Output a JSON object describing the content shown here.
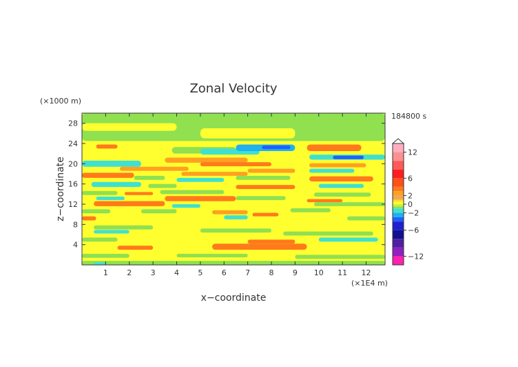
{
  "chart_data": {
    "type": "heatmap",
    "title": "Zonal Velocity",
    "xlabel": "x−coordinate",
    "ylabel": "z−coordinate",
    "x_unit": "(×1E4 m)",
    "y_unit": "(×1000 m)",
    "time_label": "184800 s",
    "xlim": [
      0,
      12.8
    ],
    "ylim": [
      0,
      30
    ],
    "x_ticks": [
      "1",
      "2",
      "3",
      "4",
      "5",
      "6",
      "7",
      "8",
      "9",
      "10",
      "11",
      "12"
    ],
    "y_ticks": [
      "4",
      "8",
      "12",
      "16",
      "20",
      "24",
      "28"
    ],
    "colorbar": {
      "labels": [
        "12",
        "6",
        "2",
        "0",
        "−2",
        "−6",
        "−12"
      ],
      "levels": [
        {
          "lo": 12,
          "hi": 14,
          "color": "#ffb0c0"
        },
        {
          "lo": 10,
          "hi": 12,
          "color": "#ff9090"
        },
        {
          "lo": 8,
          "hi": 10,
          "color": "#ff5a5a"
        },
        {
          "lo": 6,
          "hi": 8,
          "color": "#ff1e1e"
        },
        {
          "lo": 4,
          "hi": 6,
          "color": "#ff5018"
        },
        {
          "lo": 3,
          "hi": 4,
          "color": "#ff7a1a"
        },
        {
          "lo": 2,
          "hi": 3,
          "color": "#ffa020"
        },
        {
          "lo": 1,
          "hi": 2,
          "color": "#f0a850"
        },
        {
          "lo": 0.5,
          "hi": 1,
          "color": "#ffe020"
        },
        {
          "lo": 0,
          "hi": 0.5,
          "color": "#ffff30"
        },
        {
          "lo": -0.5,
          "hi": 0,
          "color": "#c8f040"
        },
        {
          "lo": -1,
          "hi": -0.5,
          "color": "#90e050"
        },
        {
          "lo": -2,
          "hi": -1,
          "color": "#40e0d0"
        },
        {
          "lo": -3,
          "hi": -2,
          "color": "#20b0f0"
        },
        {
          "lo": -4,
          "hi": -3,
          "color": "#1e60ff"
        },
        {
          "lo": -6,
          "hi": -4,
          "color": "#2020d0"
        },
        {
          "lo": -8,
          "hi": -6,
          "color": "#101090"
        },
        {
          "lo": -10,
          "hi": -8,
          "color": "#5020a0"
        },
        {
          "lo": -12,
          "hi": -10,
          "color": "#9020c0"
        },
        {
          "lo": -14,
          "hi": -12,
          "color": "#ff20b0"
        }
      ]
    },
    "bands": [
      {
        "x": [
          0,
          12.8
        ],
        "z": [
          24.5,
          30
        ],
        "v": -0.8
      },
      {
        "x": [
          0,
          4
        ],
        "z": [
          26.5,
          28
        ],
        "v": 0.3
      },
      {
        "x": [
          5,
          9
        ],
        "z": [
          25,
          27
        ],
        "v": 0.3
      },
      {
        "x": [
          0.5,
          3.5
        ],
        "z": [
          21.5,
          24
        ],
        "v": 0.3
      },
      {
        "x": [
          0.6,
          1.5
        ],
        "z": [
          23,
          23.8
        ],
        "v": 3
      },
      {
        "x": [
          3.8,
          6.5
        ],
        "z": [
          22,
          23.3
        ],
        "v": -0.8
      },
      {
        "x": [
          5,
          7.5
        ],
        "z": [
          21.8,
          23
        ],
        "v": -2
      },
      {
        "x": [
          6.5,
          9
        ],
        "z": [
          22.5,
          23.8
        ],
        "v": -2.5
      },
      {
        "x": [
          7.6,
          8.8
        ],
        "z": [
          22.9,
          23.6
        ],
        "v": -3.5
      },
      {
        "x": [
          9.5,
          11.8
        ],
        "z": [
          22.5,
          23.8
        ],
        "v": 3
      },
      {
        "x": [
          0,
          2.5
        ],
        "z": [
          19.4,
          20.6
        ],
        "v": -2
      },
      {
        "x": [
          3.5,
          7
        ],
        "z": [
          20.2,
          21.2
        ],
        "v": 2.5
      },
      {
        "x": [
          5,
          8
        ],
        "z": [
          19.5,
          20.3
        ],
        "v": 3
      },
      {
        "x": [
          9.6,
          12.8
        ],
        "z": [
          20.8,
          21.8
        ],
        "v": -2
      },
      {
        "x": [
          10.6,
          11.9
        ],
        "z": [
          20.9,
          21.6
        ],
        "v": -3.5
      },
      {
        "x": [
          1.6,
          4.5
        ],
        "z": [
          18.6,
          19.4
        ],
        "v": 2.5
      },
      {
        "x": [
          4.2,
          7
        ],
        "z": [
          17.6,
          18.4
        ],
        "v": 2.5
      },
      {
        "x": [
          7,
          9
        ],
        "z": [
          18.2,
          19
        ],
        "v": 2.5
      },
      {
        "x": [
          9.6,
          12
        ],
        "z": [
          19.3,
          20.1
        ],
        "v": 2.5
      },
      {
        "x": [
          9.6,
          11.5
        ],
        "z": [
          18.2,
          19
        ],
        "v": -2
      },
      {
        "x": [
          0,
          2.2
        ],
        "z": [
          17.2,
          18.2
        ],
        "v": 3
      },
      {
        "x": [
          2.2,
          3.5
        ],
        "z": [
          16.8,
          17.6
        ],
        "v": -0.8
      },
      {
        "x": [
          4,
          6
        ],
        "z": [
          16.4,
          17.2
        ],
        "v": -2
      },
      {
        "x": [
          6.5,
          8.8
        ],
        "z": [
          16.8,
          17.6
        ],
        "v": -0.8
      },
      {
        "x": [
          9.6,
          12.3
        ],
        "z": [
          16.5,
          17.5
        ],
        "v": 3
      },
      {
        "x": [
          0.4,
          2.5
        ],
        "z": [
          15.4,
          16.4
        ],
        "v": -2
      },
      {
        "x": [
          2.8,
          4
        ],
        "z": [
          15.2,
          16
        ],
        "v": -0.8
      },
      {
        "x": [
          6.5,
          9
        ],
        "z": [
          15,
          15.8
        ],
        "v": 3
      },
      {
        "x": [
          10,
          11.9
        ],
        "z": [
          15.2,
          16
        ],
        "v": -2
      },
      {
        "x": [
          0,
          1.5
        ],
        "z": [
          13.8,
          14.6
        ],
        "v": -0.8
      },
      {
        "x": [
          1.8,
          3
        ],
        "z": [
          13.8,
          14.4
        ],
        "v": 3
      },
      {
        "x": [
          3.3,
          6
        ],
        "z": [
          14,
          14.8
        ],
        "v": -0.8
      },
      {
        "x": [
          3.5,
          6.5
        ],
        "z": [
          12.6,
          13.6
        ],
        "v": 3
      },
      {
        "x": [
          9.8,
          12.2
        ],
        "z": [
          13.5,
          14.3
        ],
        "v": -0.8
      },
      {
        "x": [
          0.6,
          1.8
        ],
        "z": [
          12.8,
          13.5
        ],
        "v": -2
      },
      {
        "x": [
          6.5,
          8.6
        ],
        "z": [
          12.8,
          13.6
        ],
        "v": -0.8
      },
      {
        "x": [
          9.5,
          11
        ],
        "z": [
          12.4,
          13
        ],
        "v": 3
      },
      {
        "x": [
          0.5,
          3.5
        ],
        "z": [
          11.6,
          12.6
        ],
        "v": 3
      },
      {
        "x": [
          3.8,
          5
        ],
        "z": [
          11.3,
          12
        ],
        "v": -2
      },
      {
        "x": [
          9.8,
          12.8
        ],
        "z": [
          11.6,
          12.4
        ],
        "v": -0.8
      },
      {
        "x": [
          0,
          1.2
        ],
        "z": [
          10.2,
          11
        ],
        "v": -0.8
      },
      {
        "x": [
          2.5,
          4
        ],
        "z": [
          10.2,
          11
        ],
        "v": -0.8
      },
      {
        "x": [
          5.5,
          7
        ],
        "z": [
          10,
          10.8
        ],
        "v": 2.5
      },
      {
        "x": [
          8.8,
          10.5
        ],
        "z": [
          10.4,
          11.2
        ],
        "v": -0.8
      },
      {
        "x": [
          0,
          0.6
        ],
        "z": [
          8.8,
          9.6
        ],
        "v": 3
      },
      {
        "x": [
          6,
          7
        ],
        "z": [
          9,
          9.8
        ],
        "v": -2
      },
      {
        "x": [
          7.2,
          8.3
        ],
        "z": [
          9.6,
          10.3
        ],
        "v": 3
      },
      {
        "x": [
          11.2,
          12.8
        ],
        "z": [
          8.8,
          9.6
        ],
        "v": -0.8
      },
      {
        "x": [
          0.5,
          3
        ],
        "z": [
          7,
          7.8
        ],
        "v": -0.8
      },
      {
        "x": [
          5,
          8
        ],
        "z": [
          6.4,
          7.2
        ],
        "v": -0.8
      },
      {
        "x": [
          0.5,
          2
        ],
        "z": [
          6.2,
          6.9
        ],
        "v": -2
      },
      {
        "x": [
          8.5,
          12.3
        ],
        "z": [
          5.8,
          6.6
        ],
        "v": -0.8
      },
      {
        "x": [
          0,
          1.5
        ],
        "z": [
          4.6,
          5.4
        ],
        "v": -0.8
      },
      {
        "x": [
          10,
          12.5
        ],
        "z": [
          4.6,
          5.4
        ],
        "v": -2
      },
      {
        "x": [
          1.5,
          3
        ],
        "z": [
          3,
          3.8
        ],
        "v": 3
      },
      {
        "x": [
          5.5,
          9.5
        ],
        "z": [
          3,
          4.2
        ],
        "v": 3
      },
      {
        "x": [
          7,
          9
        ],
        "z": [
          4.2,
          5
        ],
        "v": 3
      },
      {
        "x": [
          0,
          2
        ],
        "z": [
          1.4,
          2.2
        ],
        "v": -0.8
      },
      {
        "x": [
          4,
          7
        ],
        "z": [
          1.5,
          2.2
        ],
        "v": -0.8
      },
      {
        "x": [
          9,
          12.8
        ],
        "z": [
          1.2,
          2
        ],
        "v": -0.8
      },
      {
        "x": [
          0,
          12.8
        ],
        "z": [
          0,
          0.8
        ],
        "v": -0.8
      },
      {
        "x": [
          0.5,
          1
        ],
        "z": [
          0,
          0.5
        ],
        "v": -2
      }
    ]
  }
}
